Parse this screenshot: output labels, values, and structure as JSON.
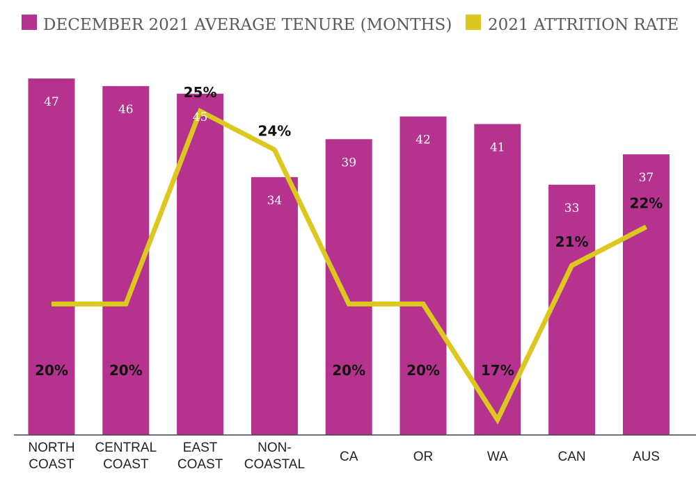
{
  "chart_data": {
    "type": "bar",
    "categories": [
      [
        "NORTH",
        "COAST"
      ],
      [
        "CENTRAL",
        "COAST"
      ],
      [
        "EAST",
        "COAST"
      ],
      [
        "NON-",
        "COASTAL"
      ],
      [
        "CA"
      ],
      [
        "OR"
      ],
      [
        "WA"
      ],
      [
        "CAN"
      ],
      [
        "AUS"
      ]
    ],
    "series": [
      {
        "name": "DECEMBER 2021 AVERAGE TENURE (MONTHS)",
        "type": "bar",
        "color": "#b5338f",
        "values": [
          47,
          46,
          45,
          34,
          39,
          42,
          41,
          33,
          37
        ],
        "ylim": [
          0,
          50
        ]
      },
      {
        "name": "2021 ATTRITION RATE",
        "type": "line",
        "color": "#dcc81e",
        "values": [
          20,
          20,
          25,
          24,
          20,
          20,
          17,
          21,
          22
        ],
        "labels": [
          "20%",
          "20%",
          "25%",
          "24%",
          "20%",
          "20%",
          "17%",
          "21%",
          "22%"
        ],
        "ylim": [
          16.2,
          30
        ]
      }
    ],
    "title": "",
    "xlabel": "",
    "ylabel": "",
    "legend": "top"
  }
}
